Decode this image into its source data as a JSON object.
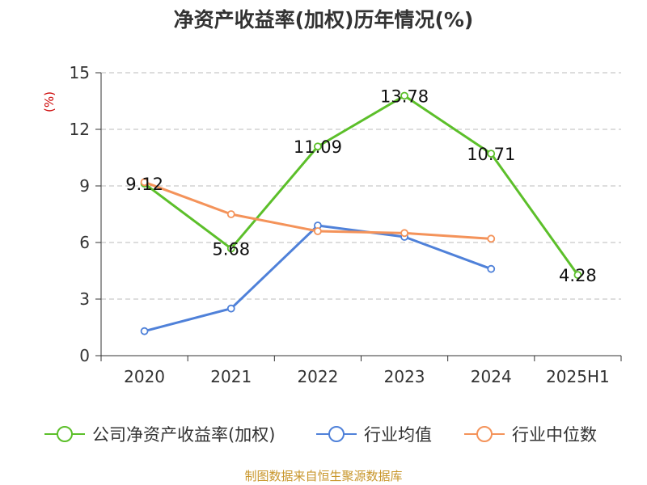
{
  "chart_data": {
    "type": "line",
    "title": "净资产收益率(加权)历年情况(%)",
    "ylabel": "(%)",
    "categories": [
      "2020",
      "2021",
      "2022",
      "2023",
      "2024",
      "2025H1"
    ],
    "ylim": [
      0,
      15
    ],
    "yticks": [
      0,
      3,
      6,
      9,
      12,
      15
    ],
    "grid": true,
    "legend_position": "bottom",
    "series": [
      {
        "name": "公司净资产收益率(加权)",
        "color": "#5cbf2a",
        "values": [
          9.12,
          5.68,
          11.09,
          13.78,
          10.71,
          4.28
        ],
        "labels": [
          "9.12",
          "5.68",
          "11.09",
          "13.78",
          "10.71",
          "4.28"
        ]
      },
      {
        "name": "行业均值",
        "color": "#4f81d9",
        "values": [
          1.3,
          2.5,
          6.9,
          6.3,
          4.6,
          null
        ]
      },
      {
        "name": "行业中位数",
        "color": "#f4935a",
        "values": [
          9.2,
          7.5,
          6.6,
          6.5,
          6.2,
          null
        ]
      }
    ]
  },
  "source_text": "制图数据来自恒生聚源数据库"
}
